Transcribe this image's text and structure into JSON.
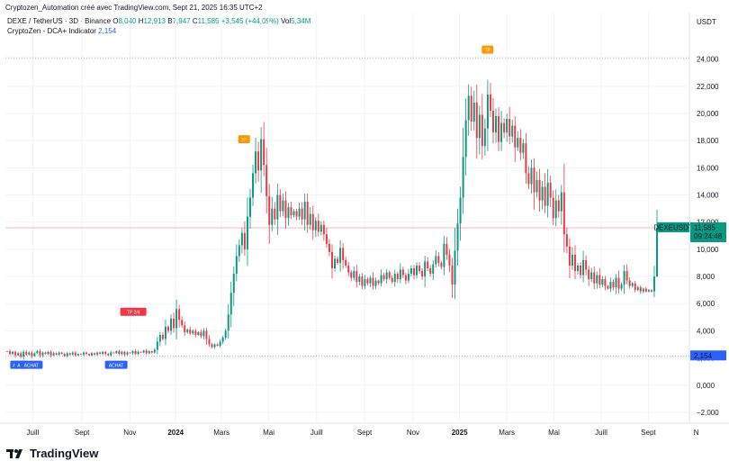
{
  "header": {
    "text": "Cryptozen_Automation créé avec TradingView.com, Sept 21, 2025 16:35 UTC+2"
  },
  "legend": {
    "symbol": "DEXE / TetherUS · 3D · Binance",
    "o_label": "O",
    "o": "8,040",
    "h_label": "H",
    "h": "12,913",
    "b_label": "B",
    "b": "7,947",
    "c_label": "C",
    "c": "11,585",
    "change": "+3,545 (+44,09%)",
    "vol_label": "Vol",
    "vol": "5,34M",
    "indicator_name": "CryptoZen - DCA+ Indicator",
    "indicator_value": "2,154"
  },
  "currency": "USDT",
  "footer": {
    "brand": "TradingView"
  },
  "colors": {
    "up": "#089981",
    "down": "#f23645",
    "blue": "#2962ff",
    "orange": "#ff9800"
  },
  "chart_data": {
    "type": "candlestick",
    "symbol": "DEXEUSDT",
    "timeframe": "3D",
    "y_range": [
      -2800,
      25700
    ],
    "y_ticks": [
      24000,
      22000,
      20000,
      18000,
      16000,
      14000,
      12000,
      10000,
      8000,
      6000,
      4000,
      2000,
      0,
      -2000
    ],
    "y_tick_labels": [
      "24,000",
      "22,000",
      "20,000",
      "18,000",
      "16,000",
      "14,000",
      "12,000",
      "10,000",
      "8,000",
      "6,000",
      "4,000",
      "2,000",
      "0,000",
      "−2,000"
    ],
    "x_labels": [
      {
        "t": 0.04,
        "label": "Juill",
        "bold": false
      },
      {
        "t": 0.112,
        "label": "Sept",
        "bold": false
      },
      {
        "t": 0.182,
        "label": "Nov",
        "bold": false
      },
      {
        "t": 0.249,
        "label": "2024",
        "bold": true
      },
      {
        "t": 0.316,
        "label": "Mars",
        "bold": false
      },
      {
        "t": 0.385,
        "label": "Mai",
        "bold": false
      },
      {
        "t": 0.455,
        "label": "Juill",
        "bold": false
      },
      {
        "t": 0.525,
        "label": "Sept",
        "bold": false
      },
      {
        "t": 0.596,
        "label": "Nov",
        "bold": false
      },
      {
        "t": 0.664,
        "label": "2025",
        "bold": true
      },
      {
        "t": 0.733,
        "label": "Mars",
        "bold": false
      },
      {
        "t": 0.802,
        "label": "Mai",
        "bold": false
      },
      {
        "t": 0.871,
        "label": "Juill",
        "bold": false
      },
      {
        "t": 0.94,
        "label": "Sept",
        "bold": false
      },
      {
        "t": 1.01,
        "label": "N",
        "bold": false
      }
    ],
    "price_level": 24100,
    "indicator_level": 2154,
    "last_price": 11585,
    "last_price_label": "11,585",
    "countdown": "09:24:48",
    "indicator_label": "2,154",
    "markers": [
      {
        "t": 0.013,
        "price": 1400,
        "label": "A",
        "color": "#2962ff"
      },
      {
        "t": 0.022,
        "price": 1400,
        "label": "AC",
        "color": "#2962ff"
      },
      {
        "t": 0.038,
        "price": 1400,
        "label": "ACHAT",
        "color": "#2962ff"
      },
      {
        "t": 0.162,
        "price": 1400,
        "label": "ACHAT",
        "color": "#2962ff"
      },
      {
        "t": 0.187,
        "price": 5300,
        "label": "TP 2/4",
        "color": "#f23645"
      },
      {
        "t": 0.349,
        "price": 18000,
        "label": "TP",
        "color": "#ff9800"
      },
      {
        "t": 0.705,
        "price": 24600,
        "label": "TP",
        "color": "#ff9800"
      }
    ],
    "closes": [
      2500,
      2300,
      2450,
      2200,
      2350,
      2100,
      2450,
      2250,
      2400,
      2150,
      2350,
      2500,
      2200,
      2400,
      2300,
      2450,
      2200,
      2350,
      2250,
      2400,
      2300,
      2150,
      2350,
      2250,
      2400,
      2200,
      2300,
      2250,
      2400,
      2300,
      2200,
      2350,
      2250,
      2400,
      2300,
      2450,
      2300,
      2200,
      2400,
      2350,
      2500,
      2300,
      2450,
      2250,
      2400,
      2350,
      2500,
      2300,
      2450,
      2400,
      2550,
      2350,
      2500,
      2400,
      2600,
      3200,
      3700,
      3400,
      4300,
      4000,
      4900,
      4200,
      5600,
      4800,
      4400,
      3900,
      4100,
      3800,
      4000,
      3700,
      3900,
      3600,
      4000,
      3400,
      3000,
      2800,
      3000,
      2900,
      3200,
      3500,
      4000,
      5200,
      6800,
      8200,
      9500,
      10300,
      11200,
      10000,
      12400,
      13800,
      15600,
      17200,
      15800,
      18100,
      16200,
      13900,
      11800,
      13000,
      12200,
      14000,
      12800,
      13600,
      12300,
      13100,
      12500,
      12800,
      12400,
      13000,
      12200,
      13500,
      11800,
      12600,
      11400,
      12100,
      11300,
      11800,
      11100,
      10400,
      9800,
      8600,
      9300,
      9000,
      10100,
      9200,
      8800,
      8300,
      7900,
      8400,
      7600,
      8000,
      7300,
      7800,
      7500,
      7900,
      7300,
      7700,
      7500,
      8100,
      7800,
      8300,
      7900,
      7600,
      8200,
      7800,
      8500,
      8100,
      7700,
      8200,
      8600,
      8100,
      8800,
      8400,
      8000,
      9100,
      8600,
      8200,
      8900,
      9500,
      9000,
      8700,
      10400,
      9600,
      8800,
      7400,
      9900,
      11900,
      13800,
      16800,
      19500,
      21300,
      19400,
      20800,
      18200,
      19900,
      17600,
      18900,
      21400,
      20200,
      18600,
      19800,
      17900,
      19300,
      18600,
      19600,
      18300,
      19100,
      17500,
      18200,
      17100,
      17800,
      15600,
      14800,
      16000,
      14200,
      15100,
      13600,
      14600,
      13200,
      14900,
      13800,
      12300,
      13600,
      12800,
      14200,
      11100,
      10200,
      8800,
      9600,
      8400,
      8800,
      8100,
      9200,
      8500,
      7800,
      8300,
      7500,
      8100,
      7400,
      7800,
      7300,
      7100,
      7600,
      7200,
      7900,
      7100,
      7400,
      8400,
      7700,
      7300,
      7500,
      7000,
      7200,
      6900,
      7100,
      6900,
      7000,
      6900,
      8000,
      11585
    ]
  }
}
